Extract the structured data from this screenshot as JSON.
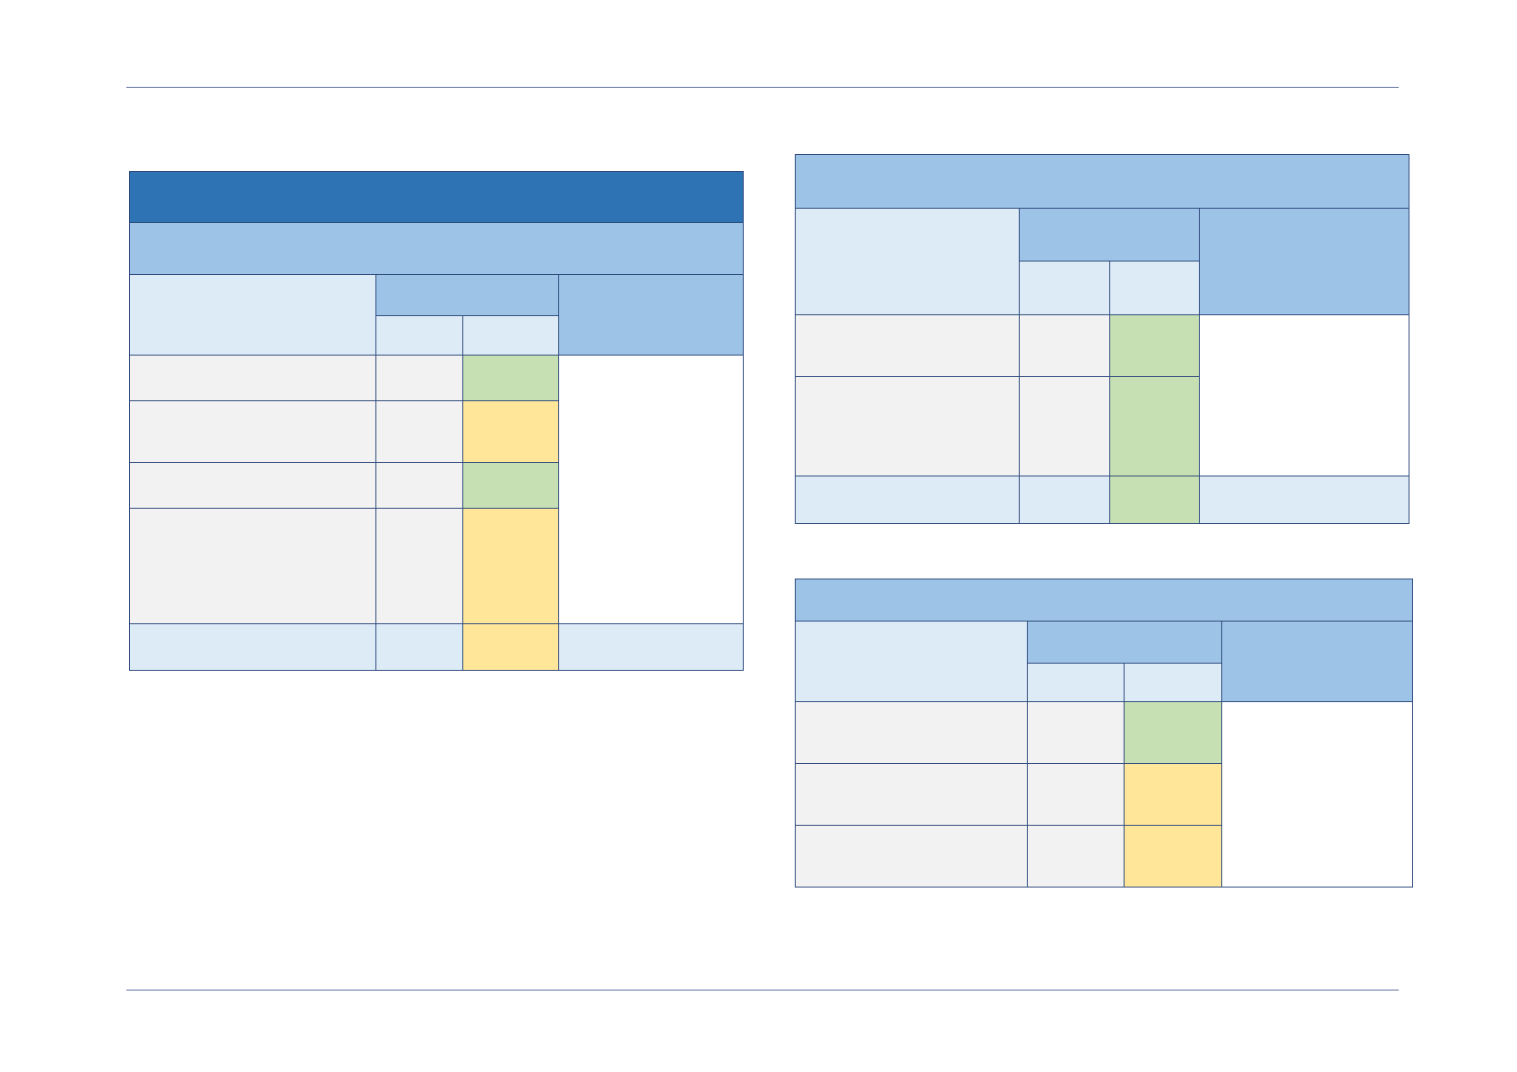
{
  "colors": {
    "rule": "#5a6f97",
    "border": "#2f4a7c",
    "header_dark": "#2e74b5",
    "header_mid": "#9dc3e6",
    "header_light": "#ddebf7",
    "row_gray": "#f2f2f2",
    "status_green": "#c6e0b4",
    "status_yellow": "#ffe699"
  },
  "tables": {
    "a": {
      "title": "",
      "subtitle": "",
      "header": {
        "label": "",
        "group": "",
        "sub1": "",
        "sub2": "",
        "comment": ""
      },
      "rows": [
        {
          "label": "",
          "value": "",
          "status": "",
          "status_color": "green"
        },
        {
          "label": "",
          "value": "",
          "status": "",
          "status_color": "yellow"
        },
        {
          "label": "",
          "value": "",
          "status": "",
          "status_color": "green"
        },
        {
          "label": "",
          "value": "",
          "status": "",
          "status_color": "yellow"
        }
      ],
      "comment": "",
      "total": {
        "label": "",
        "value": "",
        "status": "",
        "comment": "",
        "status_color": "yellow"
      }
    },
    "b": {
      "title": "",
      "header": {
        "label": "",
        "group": "",
        "sub1": "",
        "sub2": "",
        "comment": ""
      },
      "rows": [
        {
          "label": "",
          "value": "",
          "status": "",
          "status_color": "green"
        },
        {
          "label": "",
          "value": "",
          "status": "",
          "status_color": "green"
        }
      ],
      "comment": "",
      "total": {
        "label": "",
        "value": "",
        "status": "",
        "comment": "",
        "status_color": "green"
      }
    },
    "c": {
      "title": "",
      "header": {
        "label": "",
        "group": "",
        "sub1": "",
        "sub2": "",
        "comment": ""
      },
      "rows": [
        {
          "label": "",
          "value": "",
          "status": "",
          "status_color": "green"
        },
        {
          "label": "",
          "value": "",
          "status": "",
          "status_color": "yellow"
        },
        {
          "label": "",
          "value": "",
          "status": "",
          "status_color": "yellow"
        }
      ],
      "comment": ""
    }
  }
}
